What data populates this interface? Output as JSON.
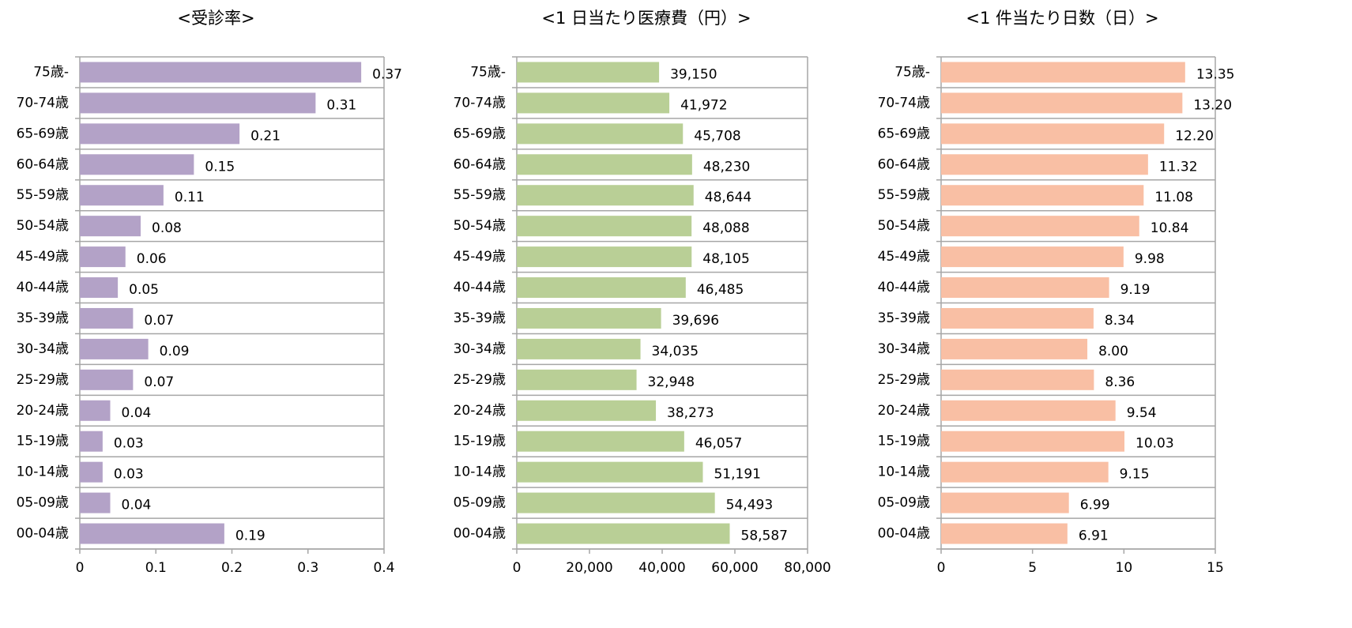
{
  "chart_data": [
    {
      "type": "bar",
      "title": "<受診率>",
      "color": "#b3a2c7",
      "categories": [
        "75歳-",
        "70-74歳",
        "65-69歳",
        "60-64歳",
        "55-59歳",
        "50-54歳",
        "45-49歳",
        "40-44歳",
        "35-39歳",
        "30-34歳",
        "25-29歳",
        "20-24歳",
        "15-19歳",
        "10-14歳",
        "05-09歳",
        "00-04歳"
      ],
      "values": [
        0.37,
        0.31,
        0.21,
        0.15,
        0.11,
        0.08,
        0.06,
        0.05,
        0.07,
        0.09,
        0.07,
        0.04,
        0.03,
        0.03,
        0.04,
        0.19
      ],
      "xlim": [
        0,
        0.4
      ],
      "xticks": [
        0,
        0.1,
        0.2,
        0.3,
        0.4
      ]
    },
    {
      "type": "bar",
      "title": "<1 日当たり医療費（円）>",
      "color": "#b9cf96",
      "categories": [
        "75歳-",
        "70-74歳",
        "65-69歳",
        "60-64歳",
        "55-59歳",
        "50-54歳",
        "45-49歳",
        "40-44歳",
        "35-39歳",
        "30-34歳",
        "25-29歳",
        "20-24歳",
        "15-19歳",
        "10-14歳",
        "05-09歳",
        "00-04歳"
      ],
      "values": [
        39150,
        41972,
        45708,
        48230,
        48644,
        48088,
        48105,
        46485,
        39696,
        34035,
        32948,
        38273,
        46057,
        51191,
        54493,
        58587
      ],
      "value_labels": [
        "39,150",
        "41,972",
        "45,708",
        "48,230",
        "48,644",
        "48,088",
        "48,105",
        "46,485",
        "39,696",
        "34,035",
        "32,948",
        "38,273",
        "46,057",
        "51,191",
        "54,493",
        "58,587"
      ],
      "xlim": [
        0,
        80000
      ],
      "xticks": [
        0,
        {
          "value": 20000,
          "label": "20,000"
        },
        {
          "value": 40000,
          "label": "40,000"
        },
        {
          "value": 60000,
          "label": "60,000"
        },
        {
          "value": 80000,
          "label": "80,000"
        }
      ]
    },
    {
      "type": "bar",
      "title": "<1 件当たり日数（日）>",
      "color": "#f9bfa4",
      "categories": [
        "75歳-",
        "70-74歳",
        "65-69歳",
        "60-64歳",
        "55-59歳",
        "50-54歳",
        "45-49歳",
        "40-44歳",
        "35-39歳",
        "30-34歳",
        "25-29歳",
        "20-24歳",
        "15-19歳",
        "10-14歳",
        "05-09歳",
        "00-04歳"
      ],
      "values": [
        13.35,
        13.2,
        12.2,
        11.32,
        11.08,
        10.84,
        9.98,
        9.19,
        8.34,
        8.0,
        8.36,
        9.54,
        10.03,
        9.15,
        6.99,
        6.91
      ],
      "value_labels": [
        "13.35",
        "13.20",
        "12.20",
        "11.32",
        "11.08",
        "10.84",
        "9.98",
        "9.19",
        "8.34",
        "8.00",
        "8.36",
        "9.54",
        "10.03",
        "9.15",
        "6.99",
        "6.91"
      ],
      "xlim": [
        0,
        15
      ],
      "xticks": [
        0,
        5,
        10,
        15
      ]
    }
  ]
}
